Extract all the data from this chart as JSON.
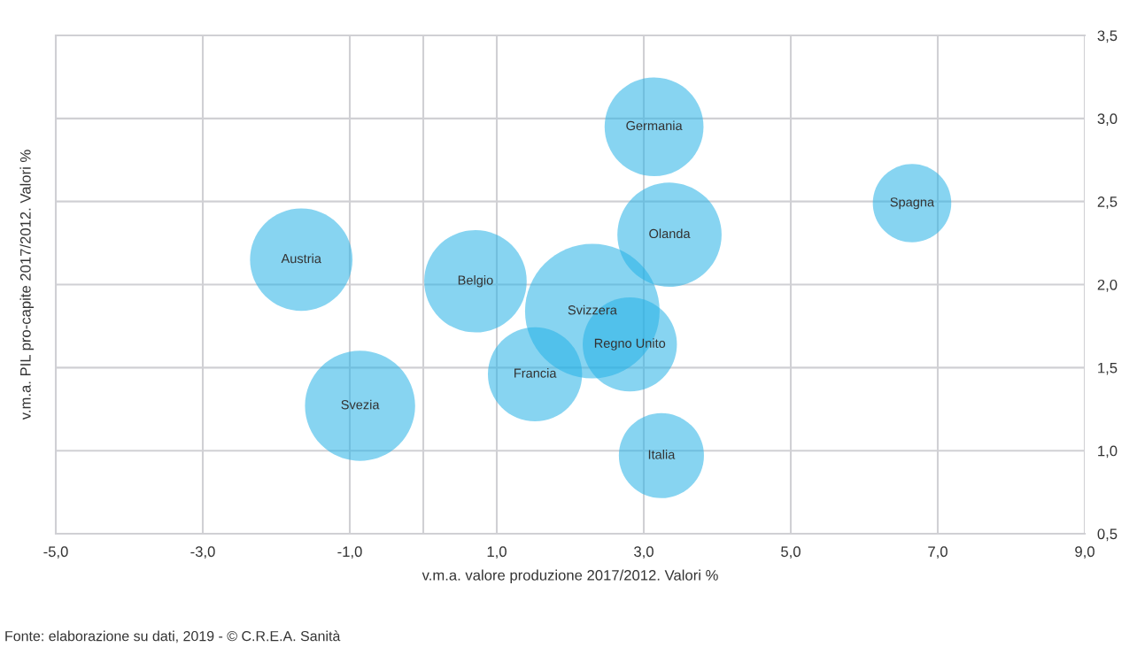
{
  "chart_data": {
    "type": "bubble",
    "xlabel": "v.m.a. valore produzione 2017/2012. Valori %",
    "ylabel": "v.m.a. PIL pro-capite 2017/2012. Valori %",
    "annotations": [
      "Fonte: elaborazione su dati, 2019 - © C.R.E.A. Sanità",
      {
        "text": "Germania",
        "x": 3.14,
        "y": 2.95
      },
      {
        "text": "Spagna",
        "x": 6.65,
        "y": 2.49
      },
      {
        "text": "Olanda",
        "x": 3.35,
        "y": 2.3
      },
      {
        "text": "Austria",
        "x": -1.66,
        "y": 2.15
      },
      {
        "text": "Belgio",
        "x": 0.71,
        "y": 2.02
      },
      {
        "text": "Svizzera",
        "x": 2.3,
        "y": 1.84
      },
      {
        "text": "Regno Unito",
        "x": 2.81,
        "y": 1.64
      },
      {
        "text": "Francia",
        "x": 1.52,
        "y": 1.46
      },
      {
        "text": "Svezia",
        "x": -0.86,
        "y": 1.27
      },
      {
        "text": "Italia",
        "x": 3.24,
        "y": 0.97
      }
    ],
    "series": [
      {
        "color": "#25b1e6",
        "x": [
          3.14,
          6.65,
          3.35,
          -1.66,
          0.71,
          2.3,
          2.81,
          1.52,
          -0.86,
          3.24
        ],
        "values": [
          2.95,
          2.49,
          2.3,
          2.15,
          2.02,
          1.84,
          1.64,
          1.46,
          1.27,
          0.97
        ],
        "sizes": [
          0.54,
          0.34,
          0.6,
          0.58,
          0.58,
          1,
          0.49,
          0.49,
          0.67,
          0.4
        ]
      }
    ],
    "xlim": [
      -5,
      9
    ],
    "xticks": [
      {
        "value": -5,
        "label": "-5,0"
      },
      {
        "value": -3,
        "label": "-3,0"
      },
      {
        "value": -1,
        "label": "-1,0"
      },
      {
        "value": 1,
        "label": "1,0"
      },
      {
        "value": 3,
        "label": "3,0"
      },
      {
        "value": 5,
        "label": "5,0"
      },
      {
        "value": 7,
        "label": "7,0"
      },
      {
        "value": 9,
        "label": "9,0"
      }
    ],
    "ylim": [
      0.5,
      3.5
    ],
    "yticks": [
      {
        "value": 0.5,
        "label": "0,5"
      },
      {
        "value": 1,
        "label": "1,0"
      },
      {
        "value": 1.5,
        "label": "1,5"
      },
      {
        "value": 2,
        "label": "2,0"
      },
      {
        "value": 2.5,
        "label": "2,5"
      },
      {
        "value": 3,
        "label": "3,0"
      },
      {
        "value": 3.5,
        "label": "3,5"
      }
    ],
    "ref_lines": [
      {
        "axis": "x",
        "value": 0,
        "label": null,
        "color": "#d0d0d4"
      }
    ],
    "grid": true
  }
}
